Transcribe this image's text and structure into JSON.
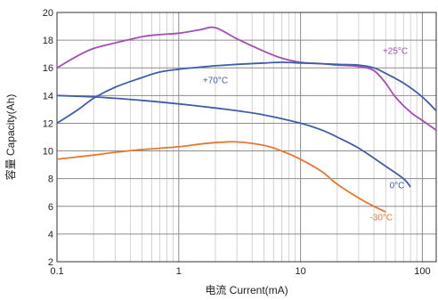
{
  "chart_data": {
    "type": "line",
    "xlabel": "电流 Current(mA)",
    "ylabel": "容量 Capacity(Ah)",
    "xscale": "log",
    "xlim": [
      0.1,
      130
    ],
    "ylim": [
      2,
      20
    ],
    "x_tick_labels": [
      "0.1",
      "1",
      "10",
      "100"
    ],
    "x_tick_values": [
      0.1,
      1,
      10,
      100
    ],
    "y_ticks": [
      2,
      4,
      6,
      8,
      10,
      12,
      14,
      16,
      18,
      20
    ],
    "grid": true,
    "series": [
      {
        "name": "+25°C",
        "color": "#a64cb5",
        "label_at": [
          60,
          17.0
        ],
        "points": [
          [
            0.1,
            16.0
          ],
          [
            0.15,
            16.9
          ],
          [
            0.2,
            17.4
          ],
          [
            0.3,
            17.8
          ],
          [
            0.5,
            18.25
          ],
          [
            0.7,
            18.4
          ],
          [
            1,
            18.5
          ],
          [
            1.5,
            18.75
          ],
          [
            2,
            18.9
          ],
          [
            3,
            18.1
          ],
          [
            5,
            17.2
          ],
          [
            7,
            16.7
          ],
          [
            10,
            16.4
          ],
          [
            15,
            16.3
          ],
          [
            20,
            16.2
          ],
          [
            30,
            16.1
          ],
          [
            40,
            15.8
          ],
          [
            50,
            14.9
          ],
          [
            60,
            13.9
          ],
          [
            80,
            12.8
          ],
          [
            100,
            12.2
          ],
          [
            130,
            11.5
          ]
        ]
      },
      {
        "name": "+70°C",
        "color": "#3f5ea8",
        "label_at": [
          2,
          14.9
        ],
        "points": [
          [
            0.1,
            12.0
          ],
          [
            0.15,
            13.0
          ],
          [
            0.2,
            13.8
          ],
          [
            0.3,
            14.6
          ],
          [
            0.5,
            15.3
          ],
          [
            0.7,
            15.7
          ],
          [
            1,
            15.9
          ],
          [
            1.5,
            16.05
          ],
          [
            2,
            16.15
          ],
          [
            3,
            16.25
          ],
          [
            5,
            16.35
          ],
          [
            7,
            16.4
          ],
          [
            10,
            16.35
          ],
          [
            15,
            16.3
          ],
          [
            20,
            16.25
          ],
          [
            30,
            16.2
          ],
          [
            40,
            16.0
          ],
          [
            50,
            15.6
          ],
          [
            70,
            14.9
          ],
          [
            100,
            13.9
          ],
          [
            130,
            12.9
          ]
        ]
      },
      {
        "name": "0°C",
        "color": "#3f5ea8",
        "label_at": [
          62,
          7.3
        ],
        "points": [
          [
            0.1,
            14.0
          ],
          [
            0.2,
            13.9
          ],
          [
            0.3,
            13.8
          ],
          [
            0.5,
            13.65
          ],
          [
            1,
            13.4
          ],
          [
            2,
            13.1
          ],
          [
            3,
            12.9
          ],
          [
            5,
            12.6
          ],
          [
            10,
            12.0
          ],
          [
            15,
            11.5
          ],
          [
            20,
            11.0
          ],
          [
            30,
            10.2
          ],
          [
            50,
            8.9
          ],
          [
            70,
            8.0
          ],
          [
            80,
            7.4
          ]
        ]
      },
      {
        "name": "-30°C",
        "color": "#e8762e",
        "label_at": [
          46,
          5.0
        ],
        "points": [
          [
            0.1,
            9.4
          ],
          [
            0.2,
            9.7
          ],
          [
            0.3,
            9.9
          ],
          [
            0.5,
            10.1
          ],
          [
            1,
            10.3
          ],
          [
            1.5,
            10.5
          ],
          [
            2,
            10.6
          ],
          [
            3,
            10.65
          ],
          [
            5,
            10.4
          ],
          [
            7,
            10.0
          ],
          [
            10,
            9.4
          ],
          [
            15,
            8.5
          ],
          [
            20,
            7.6
          ],
          [
            30,
            6.6
          ],
          [
            40,
            6.0
          ],
          [
            50,
            5.6
          ]
        ]
      }
    ]
  }
}
